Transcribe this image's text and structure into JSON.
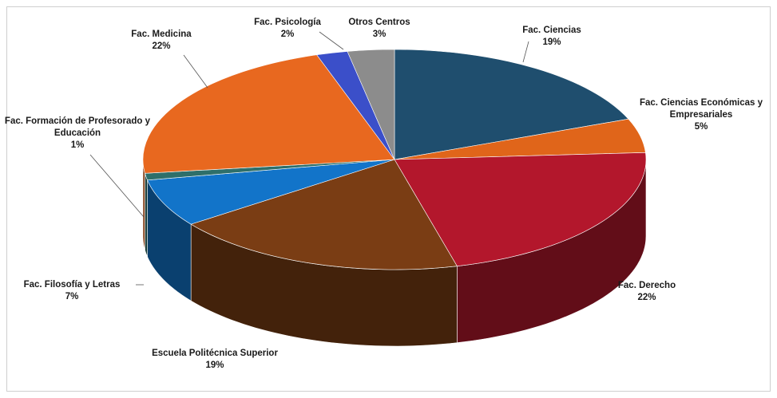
{
  "chart_data": {
    "type": "pie",
    "title": "",
    "slices": [
      {
        "label": "Fac. Ciencias",
        "value": 19,
        "pct_text": "19%",
        "color": "#1f4e6e"
      },
      {
        "label": "Fac. Ciencias Económicas y Empresariales",
        "label_lines": [
          "Fac. Ciencias Económicas y",
          "Empresariales"
        ],
        "value": 5,
        "pct_text": "5%",
        "color": "#e0651a"
      },
      {
        "label": "Fac. Derecho",
        "value": 22,
        "pct_text": "22%",
        "color": "#b3172c"
      },
      {
        "label": "Escuela Politécnica Superior",
        "value": 19,
        "pct_text": "19%",
        "color": "#7a3d14"
      },
      {
        "label": "Fac. Filosofía y Letras",
        "value": 7,
        "pct_text": "7%",
        "color": "#1274c9"
      },
      {
        "label": "Fac. Formación de Profesorado y Educación",
        "label_lines": [
          "Fac. Formación de Profesorado y",
          "Educación"
        ],
        "value": 1,
        "pct_text": "1%",
        "color": "#2e6f6a"
      },
      {
        "label": "Fac. Medicina",
        "value": 22,
        "pct_text": "22%",
        "color": "#e8681f"
      },
      {
        "label": "Fac. Psicología",
        "value": 2,
        "pct_text": "2%",
        "color": "#3b4fc9"
      },
      {
        "label": "Otros Centros",
        "value": 3,
        "pct_text": "3%",
        "color": "#8c8c8c"
      }
    ],
    "start_angle_deg": 0,
    "direction": "clockwise",
    "style": "3d",
    "legend": "none"
  }
}
